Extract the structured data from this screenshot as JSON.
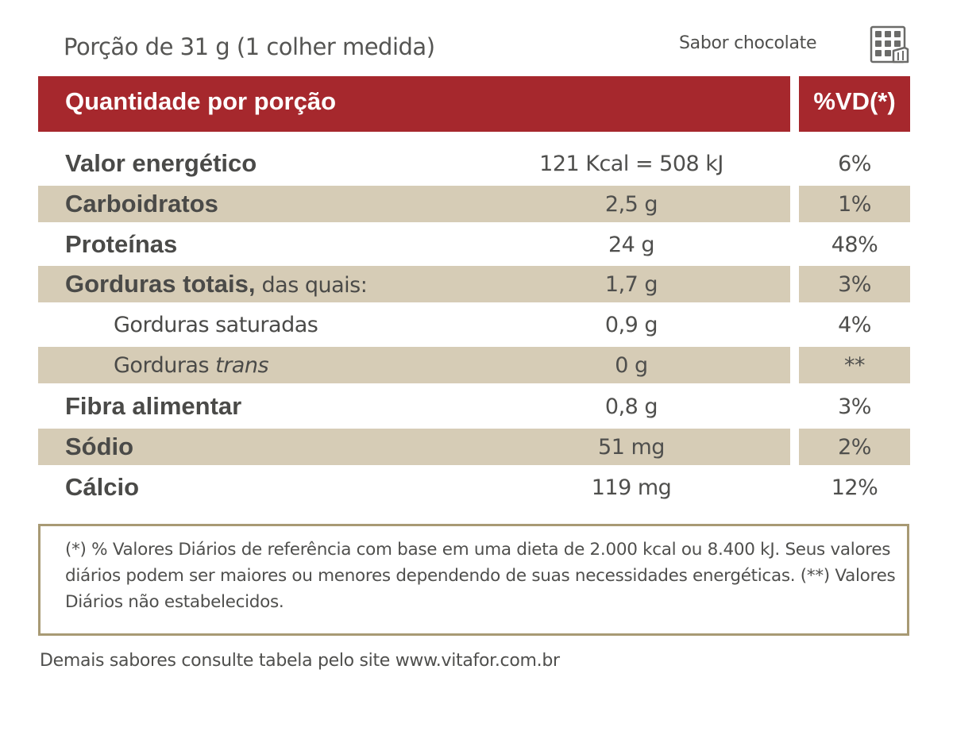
{
  "header": {
    "portion": "Porção de 31 g (1 colher medida)",
    "flavor": "Sabor chocolate",
    "flavor_icon": "chocolate-bar-icon"
  },
  "table": {
    "title": "Quantidade por porção",
    "vd_header": "%VD(*)",
    "rows": [
      {
        "name": "Valor energético",
        "amount": "121 Kcal = 508 kJ",
        "vd": "6%"
      },
      {
        "name": "Carboidratos",
        "amount": "2,5 g",
        "vd": "1%"
      },
      {
        "name": "Proteínas",
        "amount": "24 g",
        "vd": "48%"
      },
      {
        "name": "Gorduras totais,",
        "name_suffix": " das quais:",
        "amount": "1,7 g",
        "vd": "3%"
      },
      {
        "name": "Gorduras saturadas",
        "amount": "0,9 g",
        "vd": "4%"
      },
      {
        "name": "Gorduras ",
        "name_italic": "trans",
        "amount": "0 g",
        "vd": "**"
      },
      {
        "name": "Fibra alimentar",
        "amount": "0,8 g",
        "vd": "3%"
      },
      {
        "name": "Sódio",
        "amount": "51 mg",
        "vd": "2%"
      },
      {
        "name": "Cálcio",
        "amount": "119 mg",
        "vd": "12%"
      }
    ]
  },
  "footnote": "(*) % Valores Diários de referência com base em uma dieta de 2.000 kcal ou 8.400 kJ. Seus valores diários podem ser maiores ou menores dependendo de suas necessidades energéticas. (**) Valores Diários não estabelecidos.",
  "bottom_note": "Demais sabores consulte tabela pelo site www.vitafor.com.br",
  "colors": {
    "header_red": "#a6282d",
    "row_shade": "#d6ccb6",
    "box_border": "#a89a74",
    "text": "#4a4a48"
  }
}
